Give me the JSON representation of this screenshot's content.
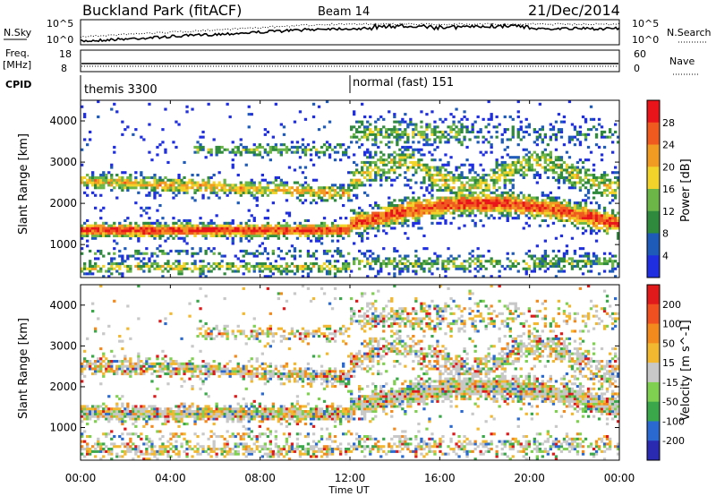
{
  "header": {
    "station": "Buckland Park (fitACF)",
    "beam": "Beam 14",
    "date": "21/Dec/2014"
  },
  "noise_panel": {
    "left_label": "N.Sky",
    "left_ticks": [
      "10^5",
      "10^0"
    ],
    "right_label": "N.Search",
    "right_ticks": [
      "10^5",
      "10^0"
    ]
  },
  "freq_panel": {
    "left_label_line1": "Freq.",
    "left_label_line2": "[MHz]",
    "left_ticks": [
      "18",
      "8"
    ],
    "right_label": "Nave",
    "right_ticks": [
      "60",
      "0"
    ]
  },
  "cpid_panel": {
    "label": "CPID",
    "modes": [
      {
        "name": "themis 3300",
        "start_hour": 0
      },
      {
        "name": "normal (fast) 151",
        "start_hour": 12
      }
    ]
  },
  "x_axis": {
    "title": "Time UT",
    "ticks": [
      "00:00",
      "04:00",
      "08:00",
      "12:00",
      "16:00",
      "20:00",
      "00:00"
    ]
  },
  "power_panel": {
    "ylabel": "Slant Range [km]",
    "yticks": [
      "1000",
      "2000",
      "3000",
      "4000"
    ],
    "colorbar_title": "Power [dB]",
    "colorbar_ticks": [
      "4",
      "8",
      "12",
      "16",
      "20",
      "24",
      "28"
    ],
    "colors": [
      "#1f2fe0",
      "#1e5bb8",
      "#2f8a3e",
      "#6cb648",
      "#f2d32a",
      "#f29b22",
      "#f05a1e",
      "#e8141a"
    ]
  },
  "velocity_panel": {
    "ylabel": "Slant Range [km]",
    "yticks": [
      "1000",
      "2000",
      "3000",
      "4000"
    ],
    "colorbar_title": "Velocity [m s^-1]",
    "colorbar_ticks": [
      "200",
      "100",
      "50",
      "15",
      "-15",
      "-50",
      "-100",
      "-200"
    ],
    "colors": [
      "#2a2ab0",
      "#2a6ad0",
      "#3aa84a",
      "#7fd050",
      "#c8c8c8",
      "#f2b830",
      "#f28a1e",
      "#f05020",
      "#e01a1a"
    ]
  },
  "chart_data": [
    {
      "type": "heatmap",
      "title": "Power [dB]",
      "x": [
        "00:00",
        "04:00",
        "08:00",
        "12:00",
        "16:00",
        "20:00",
        "00:00"
      ],
      "xlabel": "Time UT",
      "ylabel": "Slant Range [km]",
      "xlim_hours": [
        0,
        24
      ],
      "ylim": [
        200,
        4500
      ],
      "colorscale_range": [
        0,
        30
      ],
      "bands_approx": [
        {
          "t_start": 0,
          "t_end": 12,
          "range_center_km": 1350,
          "value": 26
        },
        {
          "t_start": 0,
          "t_end": 12,
          "range_center_km": 2400,
          "value": 18
        },
        {
          "t_start": 12,
          "t_end": 24,
          "range_center_km": 1700,
          "value": 22
        }
      ]
    },
    {
      "type": "heatmap",
      "title": "Velocity [m s^-1]",
      "x": [
        "00:00",
        "04:00",
        "08:00",
        "12:00",
        "16:00",
        "20:00",
        "00:00"
      ],
      "xlabel": "Time UT",
      "ylabel": "Slant Range [km]",
      "xlim_hours": [
        0,
        24
      ],
      "ylim": [
        200,
        4500
      ],
      "colorscale_range": [
        -200,
        200
      ]
    }
  ]
}
